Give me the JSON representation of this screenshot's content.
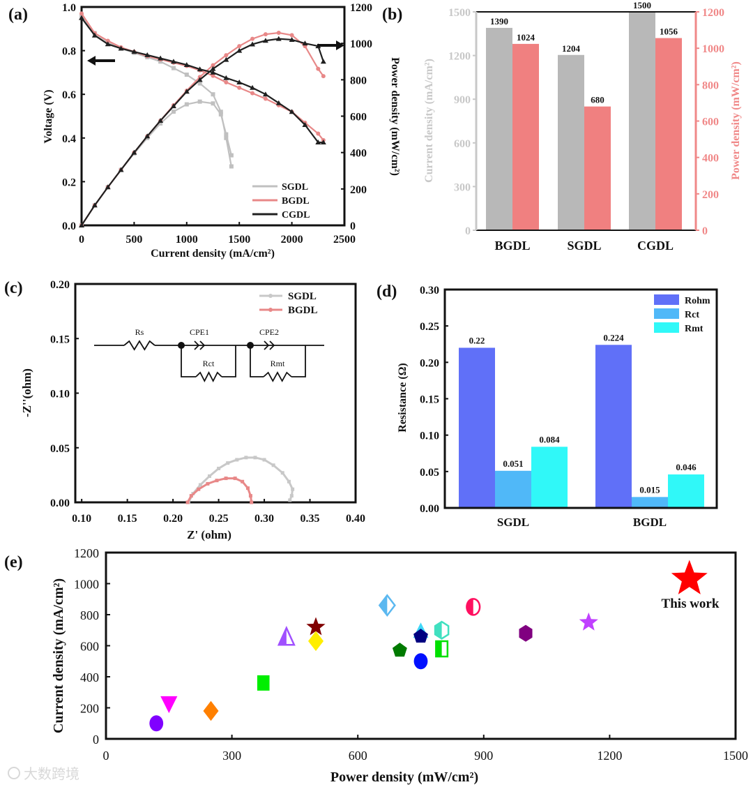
{
  "watermark": "大数跨境",
  "chart_data": [
    {
      "panel": "(a)",
      "type": "line",
      "xlabel": "Current density (mA/cm²)",
      "ylabel": "Voltage (V)",
      "y2label": "Power density (mW/cm²)",
      "xlim": [
        0,
        2500
      ],
      "ylim": [
        0,
        1.0
      ],
      "y2lim": [
        0,
        1200
      ],
      "xticks": [
        0,
        500,
        1000,
        1500,
        2000,
        2500
      ],
      "yticks": [
        "0.0",
        "0.2",
        "0.4",
        "0.6",
        "0.8",
        "1.0"
      ],
      "y2ticks": [
        0,
        200,
        400,
        600,
        800,
        1000,
        1200
      ],
      "legend_position": "bottom-right",
      "series": [
        {
          "name": "SGDL",
          "color": "#c0c0c0",
          "marker": "square",
          "x": [
            0,
            125,
            250,
            375,
            500,
            625,
            750,
            875,
            1000,
            1125,
            1250,
            1325,
            1375,
            1425
          ],
          "voltage": [
            0.96,
            0.88,
            0.84,
            0.81,
            0.79,
            0.77,
            0.75,
            0.72,
            0.69,
            0.65,
            0.6,
            0.52,
            0.4,
            0.27
          ],
          "power": [
            0,
            110,
            210,
            305,
            395,
            480,
            560,
            625,
            665,
            680,
            670,
            610,
            500,
            385
          ]
        },
        {
          "name": "BGDL",
          "color": "#e88888",
          "marker": "circle",
          "x": [
            0,
            125,
            250,
            375,
            500,
            625,
            750,
            875,
            1000,
            1125,
            1250,
            1375,
            1500,
            1625,
            1750,
            1875,
            2000,
            2125,
            2250,
            2300
          ],
          "voltage": [
            0.97,
            0.88,
            0.845,
            0.815,
            0.795,
            0.775,
            0.76,
            0.745,
            0.73,
            0.71,
            0.685,
            0.655,
            0.63,
            0.605,
            0.58,
            0.55,
            0.52,
            0.47,
            0.42,
            0.39
          ],
          "power": [
            0,
            110,
            210,
            305,
            400,
            490,
            575,
            660,
            740,
            815,
            880,
            935,
            985,
            1025,
            1050,
            1058,
            1045,
            985,
            860,
            820
          ]
        },
        {
          "name": "CGDL",
          "color": "#202020",
          "marker": "triangle",
          "x": [
            0,
            125,
            250,
            375,
            500,
            625,
            750,
            875,
            1000,
            1125,
            1250,
            1375,
            1500,
            1625,
            1750,
            1875,
            2000,
            2125,
            2250,
            2300
          ],
          "voltage": [
            0.95,
            0.87,
            0.83,
            0.81,
            0.795,
            0.78,
            0.765,
            0.75,
            0.735,
            0.715,
            0.7,
            0.675,
            0.655,
            0.63,
            0.6,
            0.56,
            0.52,
            0.46,
            0.38,
            0.38
          ],
          "power": [
            0,
            110,
            210,
            305,
            400,
            490,
            575,
            655,
            735,
            800,
            860,
            910,
            960,
            995,
            1015,
            1025,
            1020,
            1000,
            985,
            900
          ]
        }
      ]
    },
    {
      "panel": "(b)",
      "type": "bar",
      "categories": [
        "BGDL",
        "SGDL",
        "CGDL"
      ],
      "ylabel": "Current density (mA/cm²)",
      "y2label": "Power density (mW/cm²)",
      "ylim": [
        0,
        1500
      ],
      "y2lim": [
        0,
        1200
      ],
      "yticks": [
        0,
        300,
        600,
        900,
        1200,
        1500
      ],
      "y2ticks": [
        0,
        200,
        400,
        600,
        800,
        1000,
        1200
      ],
      "series": [
        {
          "name": "Current density",
          "axis": "left",
          "color": "#b8b8b8",
          "values": [
            1390,
            1204,
            1500
          ]
        },
        {
          "name": "Power density",
          "axis": "right",
          "color": "#f08080",
          "values": [
            1024,
            680,
            1056
          ]
        }
      ],
      "left_axis_color": "#c8c8c8",
      "right_axis_color": "#f08888"
    },
    {
      "panel": "(c)",
      "type": "scatter",
      "xlabel": "Z' (ohm)",
      "ylabel": "-Z''(ohm)",
      "xlim": [
        0.093,
        0.4
      ],
      "ylim": [
        0,
        0.2
      ],
      "xticks": [
        "0.10",
        "0.15",
        "0.20",
        "0.25",
        "0.30",
        "0.35",
        "0.40"
      ],
      "yticks": [
        "0.00",
        "0.05",
        "0.10",
        "0.15",
        "0.20"
      ],
      "legend_position": "top-right",
      "circuit_labels": {
        "rs": "Rs",
        "cpe1": "CPE1",
        "cpe2": "CPE2",
        "rct": "Rct",
        "rmt": "Rmt"
      },
      "series": [
        {
          "name": "SGDL",
          "color": "#c8c8c8",
          "points": [
            [
              0.217,
              0
            ],
            [
              0.222,
              0.008
            ],
            [
              0.23,
              0.016
            ],
            [
              0.24,
              0.024
            ],
            [
              0.25,
              0.031
            ],
            [
              0.26,
              0.036
            ],
            [
              0.27,
              0.039
            ],
            [
              0.28,
              0.041
            ],
            [
              0.29,
              0.041
            ],
            [
              0.3,
              0.039
            ],
            [
              0.31,
              0.034
            ],
            [
              0.32,
              0.027
            ],
            [
              0.327,
              0.019
            ],
            [
              0.331,
              0.012
            ],
            [
              0.33,
              0.006
            ],
            [
              0.328,
              0.002
            ]
          ]
        },
        {
          "name": "BGDL",
          "color": "#e88888",
          "points": [
            [
              0.216,
              0
            ],
            [
              0.22,
              0.006
            ],
            [
              0.228,
              0.012
            ],
            [
              0.238,
              0.017
            ],
            [
              0.248,
              0.02
            ],
            [
              0.258,
              0.022
            ],
            [
              0.268,
              0.022
            ],
            [
              0.276,
              0.019
            ],
            [
              0.282,
              0.013
            ],
            [
              0.285,
              0.006
            ],
            [
              0.286,
              0
            ]
          ]
        }
      ]
    },
    {
      "panel": "(d)",
      "type": "bar",
      "categories": [
        "SGDL",
        "BGDL"
      ],
      "ylabel": "Resistance (Ω)",
      "ylim": [
        0,
        0.3
      ],
      "yticks": [
        "0.00",
        "0.05",
        "0.10",
        "0.15",
        "0.20",
        "0.25",
        "0.30"
      ],
      "legend_position": "top-right",
      "series": [
        {
          "name": "Rohm",
          "color": "#6070f8",
          "values": [
            0.22,
            0.224
          ],
          "labels": [
            "0.22",
            "0.224"
          ]
        },
        {
          "name": "Rct",
          "color": "#50b8f8",
          "values": [
            0.051,
            0.015
          ],
          "labels": [
            "0.051",
            "0.015"
          ]
        },
        {
          "name": "Rmt",
          "color": "#30f8f8",
          "values": [
            0.084,
            0.046
          ],
          "labels": [
            "0.084",
            "0.046"
          ]
        }
      ]
    },
    {
      "panel": "(e)",
      "type": "scatter",
      "xlabel": "Power density (mW/cm²)",
      "ylabel": "Current density  (mA/cm²)",
      "xlim": [
        0,
        1500
      ],
      "ylim": [
        0,
        1200
      ],
      "xticks": [
        0,
        300,
        600,
        900,
        1200,
        1500
      ],
      "yticks": [
        0,
        200,
        400,
        600,
        800,
        1000,
        1200
      ],
      "annotation": "This work",
      "points": [
        {
          "x": 120,
          "y": 100,
          "shape": "circle",
          "color": "#8000ff"
        },
        {
          "x": 150,
          "y": 230,
          "shape": "triangle-down",
          "color": "#ff00ff"
        },
        {
          "x": 250,
          "y": 180,
          "shape": "diamond",
          "color": "#ff8000"
        },
        {
          "x": 375,
          "y": 360,
          "shape": "square",
          "color": "#00ee00"
        },
        {
          "x": 430,
          "y": 650,
          "shape": "half-triangle",
          "color": "#a050ff"
        },
        {
          "x": 500,
          "y": 720,
          "shape": "star",
          "color": "#800000"
        },
        {
          "x": 500,
          "y": 630,
          "shape": "diamond",
          "color": "#ffee00"
        },
        {
          "x": 670,
          "y": 860,
          "shape": "half-diamond",
          "color": "#5bb8f0"
        },
        {
          "x": 700,
          "y": 570,
          "shape": "pentagon",
          "color": "#007a00"
        },
        {
          "x": 750,
          "y": 690,
          "shape": "triangle",
          "color": "#40d8f8"
        },
        {
          "x": 750,
          "y": 660,
          "shape": "pentagon",
          "color": "#000080"
        },
        {
          "x": 750,
          "y": 500,
          "shape": "circle",
          "color": "#0010ff"
        },
        {
          "x": 800,
          "y": 700,
          "shape": "half-hexagon",
          "color": "#40e0c0"
        },
        {
          "x": 800,
          "y": 580,
          "shape": "half-square",
          "color": "#00e000"
        },
        {
          "x": 875,
          "y": 850,
          "shape": "half-circle",
          "color": "#ff1060"
        },
        {
          "x": 1000,
          "y": 680,
          "shape": "hexagon",
          "color": "#800080"
        },
        {
          "x": 1150,
          "y": 750,
          "shape": "star",
          "color": "#c040ff"
        },
        {
          "x": 1390,
          "y": 1030,
          "shape": "star-large",
          "color": "#ff0000",
          "label": "This work"
        }
      ]
    }
  ]
}
